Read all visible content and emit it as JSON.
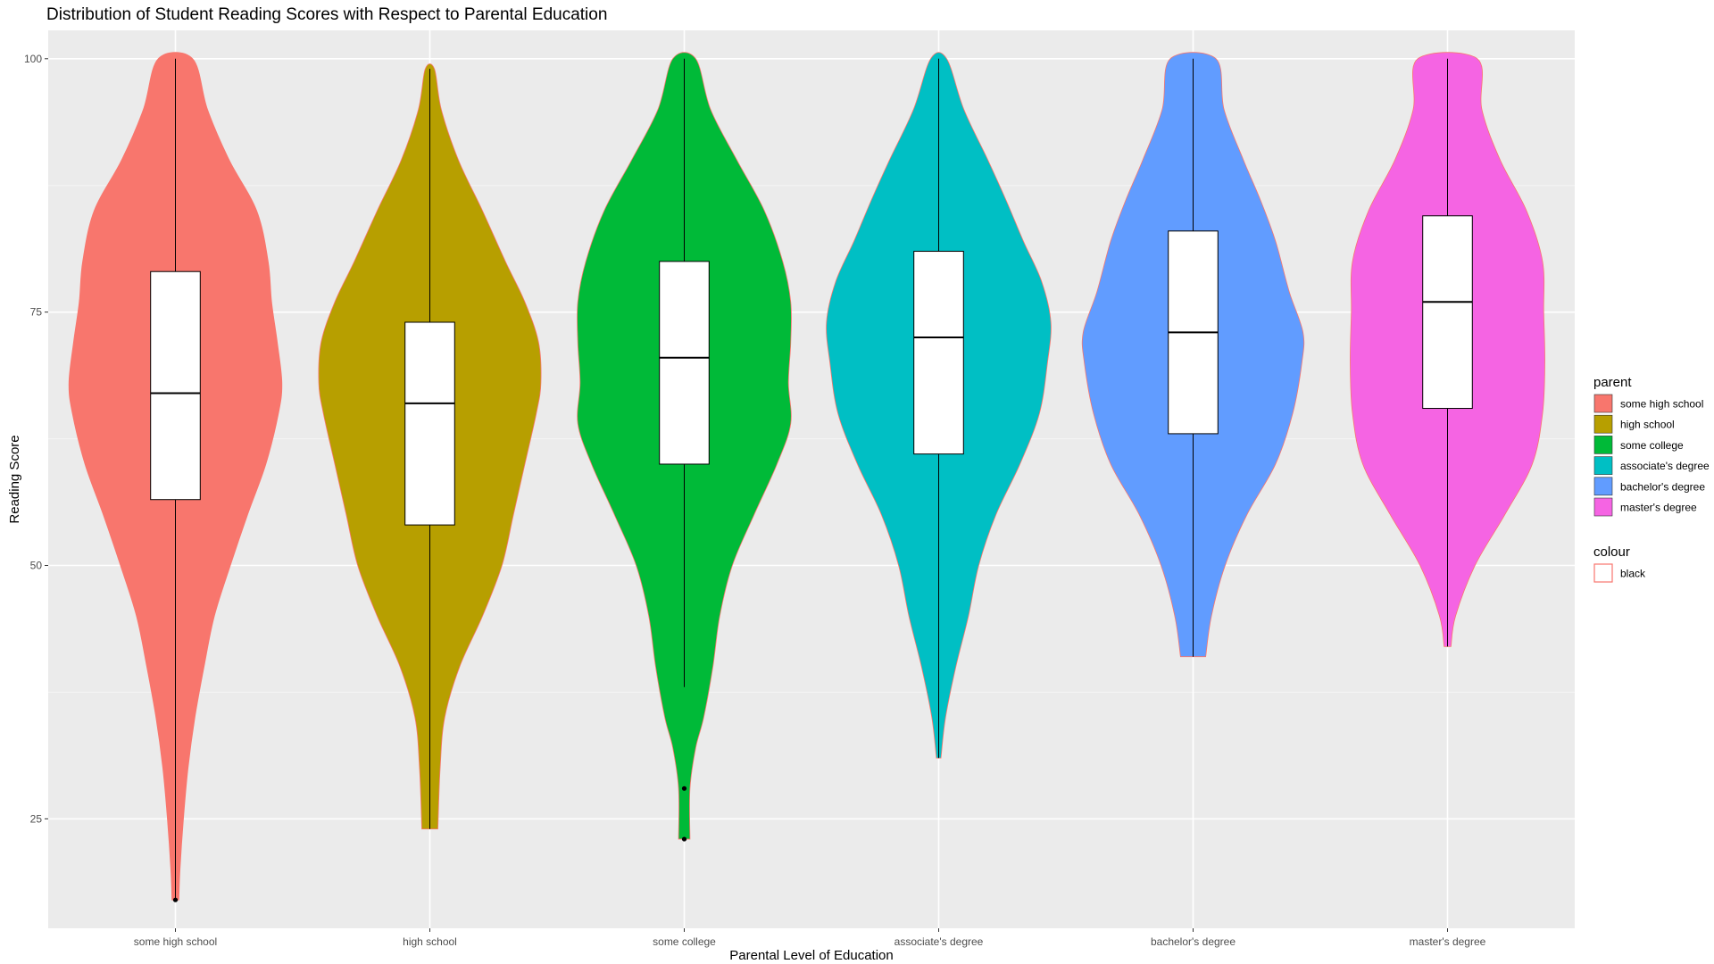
{
  "chart_data": {
    "type": "violin",
    "title": "Distribution of Student Reading Scores with Respect to Parental Education",
    "xlabel": "Parental Level of Education",
    "ylabel": "Reading Score",
    "ylim": [
      14.2,
      102.8
    ],
    "yticks": [
      25,
      50,
      75,
      100
    ],
    "grid": true,
    "legend_placement": "right",
    "categories": [
      "some high school",
      "high school",
      "some college",
      "associate's degree",
      "bachelor's degree",
      "master's degree"
    ],
    "series": [
      {
        "name": "some high school",
        "color": "#F8766D",
        "min": 17,
        "q1": 56.5,
        "median": 67,
        "q3": 79,
        "max": 100,
        "outliers": [
          17
        ],
        "density": [
          [
            17,
            0.03
          ],
          [
            20,
            0.04
          ],
          [
            25,
            0.07
          ],
          [
            30,
            0.11
          ],
          [
            35,
            0.17
          ],
          [
            40,
            0.25
          ],
          [
            45,
            0.34
          ],
          [
            50,
            0.48
          ],
          [
            55,
            0.63
          ],
          [
            60,
            0.79
          ],
          [
            65,
            0.9
          ],
          [
            68,
            0.93
          ],
          [
            72,
            0.89
          ],
          [
            76,
            0.84
          ],
          [
            80,
            0.81
          ],
          [
            85,
            0.71
          ],
          [
            90,
            0.47
          ],
          [
            95,
            0.28
          ],
          [
            100,
            0.15
          ]
        ]
      },
      {
        "name": "high school",
        "color": "#B79F00",
        "min": 24,
        "q1": 54,
        "median": 66,
        "q3": 74,
        "max": 99,
        "outliers": [],
        "density": [
          [
            24,
            0.07
          ],
          [
            30,
            0.09
          ],
          [
            35,
            0.13
          ],
          [
            40,
            0.26
          ],
          [
            45,
            0.46
          ],
          [
            50,
            0.63
          ],
          [
            55,
            0.73
          ],
          [
            60,
            0.83
          ],
          [
            65,
            0.93
          ],
          [
            68,
            0.97
          ],
          [
            72,
            0.95
          ],
          [
            76,
            0.83
          ],
          [
            80,
            0.66
          ],
          [
            85,
            0.46
          ],
          [
            90,
            0.25
          ],
          [
            95,
            0.1
          ],
          [
            99,
            0.04
          ]
        ]
      },
      {
        "name": "some college",
        "color": "#00BA38",
        "min": 38,
        "q1": 60,
        "median": 70.5,
        "q3": 80,
        "max": 100,
        "outliers": [
          28,
          23
        ],
        "density": [
          [
            23,
            0.05
          ],
          [
            28,
            0.05
          ],
          [
            32,
            0.1
          ],
          [
            35,
            0.17
          ],
          [
            40,
            0.25
          ],
          [
            45,
            0.31
          ],
          [
            50,
            0.42
          ],
          [
            55,
            0.61
          ],
          [
            60,
            0.81
          ],
          [
            64,
            0.93
          ],
          [
            68,
            0.91
          ],
          [
            72,
            0.93
          ],
          [
            76,
            0.93
          ],
          [
            80,
            0.86
          ],
          [
            85,
            0.7
          ],
          [
            90,
            0.46
          ],
          [
            95,
            0.23
          ],
          [
            100,
            0.1
          ]
        ]
      },
      {
        "name": "associate's degree",
        "color": "#00BFC4",
        "min": 31,
        "q1": 61,
        "median": 72.5,
        "q3": 81,
        "max": 100,
        "outliers": [],
        "density": [
          [
            31,
            0.02
          ],
          [
            35,
            0.06
          ],
          [
            40,
            0.15
          ],
          [
            45,
            0.26
          ],
          [
            50,
            0.35
          ],
          [
            55,
            0.5
          ],
          [
            60,
            0.71
          ],
          [
            65,
            0.88
          ],
          [
            70,
            0.95
          ],
          [
            74,
            0.98
          ],
          [
            78,
            0.9
          ],
          [
            82,
            0.74
          ],
          [
            86,
            0.59
          ],
          [
            90,
            0.43
          ],
          [
            95,
            0.22
          ],
          [
            100,
            0.07
          ]
        ]
      },
      {
        "name": "bachelor's degree",
        "color": "#619CFF",
        "min": 41,
        "q1": 63,
        "median": 73,
        "q3": 83,
        "max": 100,
        "outliers": [],
        "density": [
          [
            41,
            0.11
          ],
          [
            45,
            0.16
          ],
          [
            50,
            0.28
          ],
          [
            55,
            0.47
          ],
          [
            60,
            0.72
          ],
          [
            65,
            0.87
          ],
          [
            70,
            0.95
          ],
          [
            73,
            0.96
          ],
          [
            77,
            0.84
          ],
          [
            82,
            0.72
          ],
          [
            86,
            0.59
          ],
          [
            90,
            0.44
          ],
          [
            95,
            0.27
          ],
          [
            100,
            0.2
          ]
        ]
      },
      {
        "name": "master's degree",
        "color": "#F564E3",
        "min": 42,
        "q1": 65.5,
        "median": 76,
        "q3": 84.5,
        "max": 100,
        "outliers": [],
        "density": [
          [
            42,
            0.03
          ],
          [
            45,
            0.07
          ],
          [
            50,
            0.24
          ],
          [
            55,
            0.5
          ],
          [
            60,
            0.74
          ],
          [
            65,
            0.83
          ],
          [
            70,
            0.85
          ],
          [
            75,
            0.84
          ],
          [
            80,
            0.83
          ],
          [
            85,
            0.69
          ],
          [
            90,
            0.46
          ],
          [
            95,
            0.3
          ],
          [
            100,
            0.26
          ]
        ]
      }
    ],
    "legends": [
      {
        "title": "parent",
        "items": [
          {
            "label": "some high school",
            "color": "#F8766D"
          },
          {
            "label": "high school",
            "color": "#B79F00"
          },
          {
            "label": "some college",
            "color": "#00BA38"
          },
          {
            "label": "associate's degree",
            "color": "#00BFC4"
          },
          {
            "label": "bachelor's degree",
            "color": "#619CFF"
          },
          {
            "label": "master's degree",
            "color": "#F564E3"
          }
        ]
      },
      {
        "title": "colour",
        "items": [
          {
            "label": "black",
            "color": "#FFFFFF",
            "border": "#F8766D"
          }
        ]
      }
    ],
    "colors": {
      "panel_background": "#EBEBEB",
      "grid_major": "#FFFFFF",
      "grid_minor": "#F5F5F5",
      "violin_outline": "#F8766D",
      "box_fill": "#FFFFFF",
      "box_stroke": "#000000"
    }
  }
}
